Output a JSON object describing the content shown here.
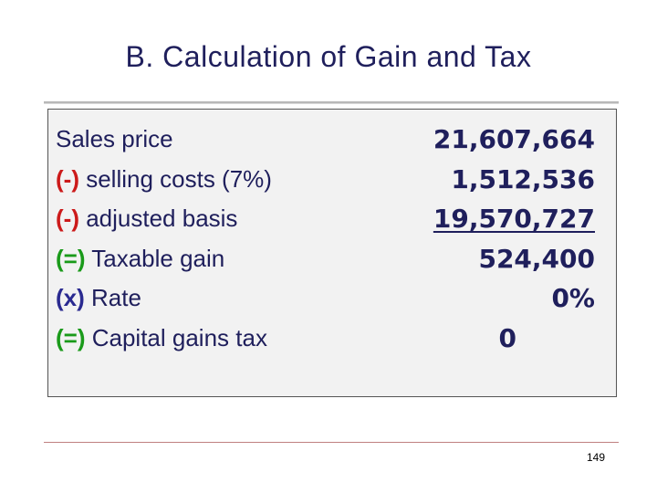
{
  "slide": {
    "title": "B. Calculation of Gain and Tax",
    "page_number": "149"
  },
  "rows": [
    {
      "operator": "",
      "operator_color": "",
      "label": "Sales price",
      "value": "21,607,664"
    },
    {
      "operator": "(-)",
      "operator_color": "#cc1a1a",
      "label": " selling costs (7%)",
      "value": "1,512,536"
    },
    {
      "operator": "(-)",
      "operator_color": "#cc1a1a",
      "label": " adjusted basis",
      "value": "19,570,727"
    },
    {
      "operator": "(=)",
      "operator_color": "#1a9a1a",
      "label": " Taxable gain",
      "value": "524,400"
    },
    {
      "operator": "(x)",
      "operator_color": "#2a2a90",
      "label": " Rate",
      "value": "0%"
    },
    {
      "operator": "(=)",
      "operator_color": "#1a9a1a",
      "label": " Capital gains tax",
      "value": "0"
    }
  ],
  "colors": {
    "text": "#1f1f5c",
    "box_background": "#f2f2f2",
    "minus": "#cc1a1a",
    "equals": "#1a9a1a",
    "times": "#2a2a90"
  }
}
